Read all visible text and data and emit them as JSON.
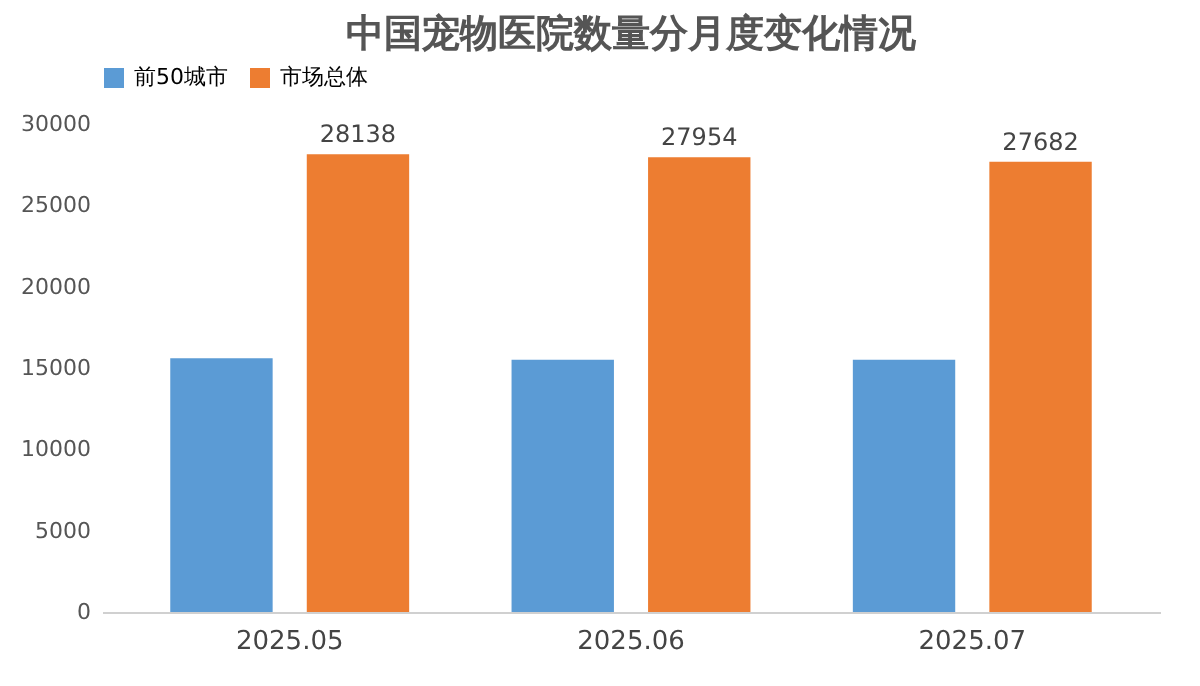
{
  "chart_data": {
    "type": "bar",
    "title": "中国宠物医院数量分月度变化情况",
    "categories": [
      "2025.05",
      "2025.06",
      "2025.07"
    ],
    "series": [
      {
        "name": "前50城市",
        "color": "#5b9bd5",
        "values": [
          15600,
          15500,
          15500
        ]
      },
      {
        "name": "市场总体",
        "color": "#ed7d31",
        "values": [
          28138,
          27954,
          27682
        ],
        "value_labels": [
          "28138",
          "27954",
          "27682"
        ]
      }
    ],
    "ylim": [
      0,
      30000
    ],
    "yticks": [
      0,
      5000,
      10000,
      15000,
      20000,
      25000,
      30000
    ],
    "grid": false,
    "legend": "top"
  }
}
